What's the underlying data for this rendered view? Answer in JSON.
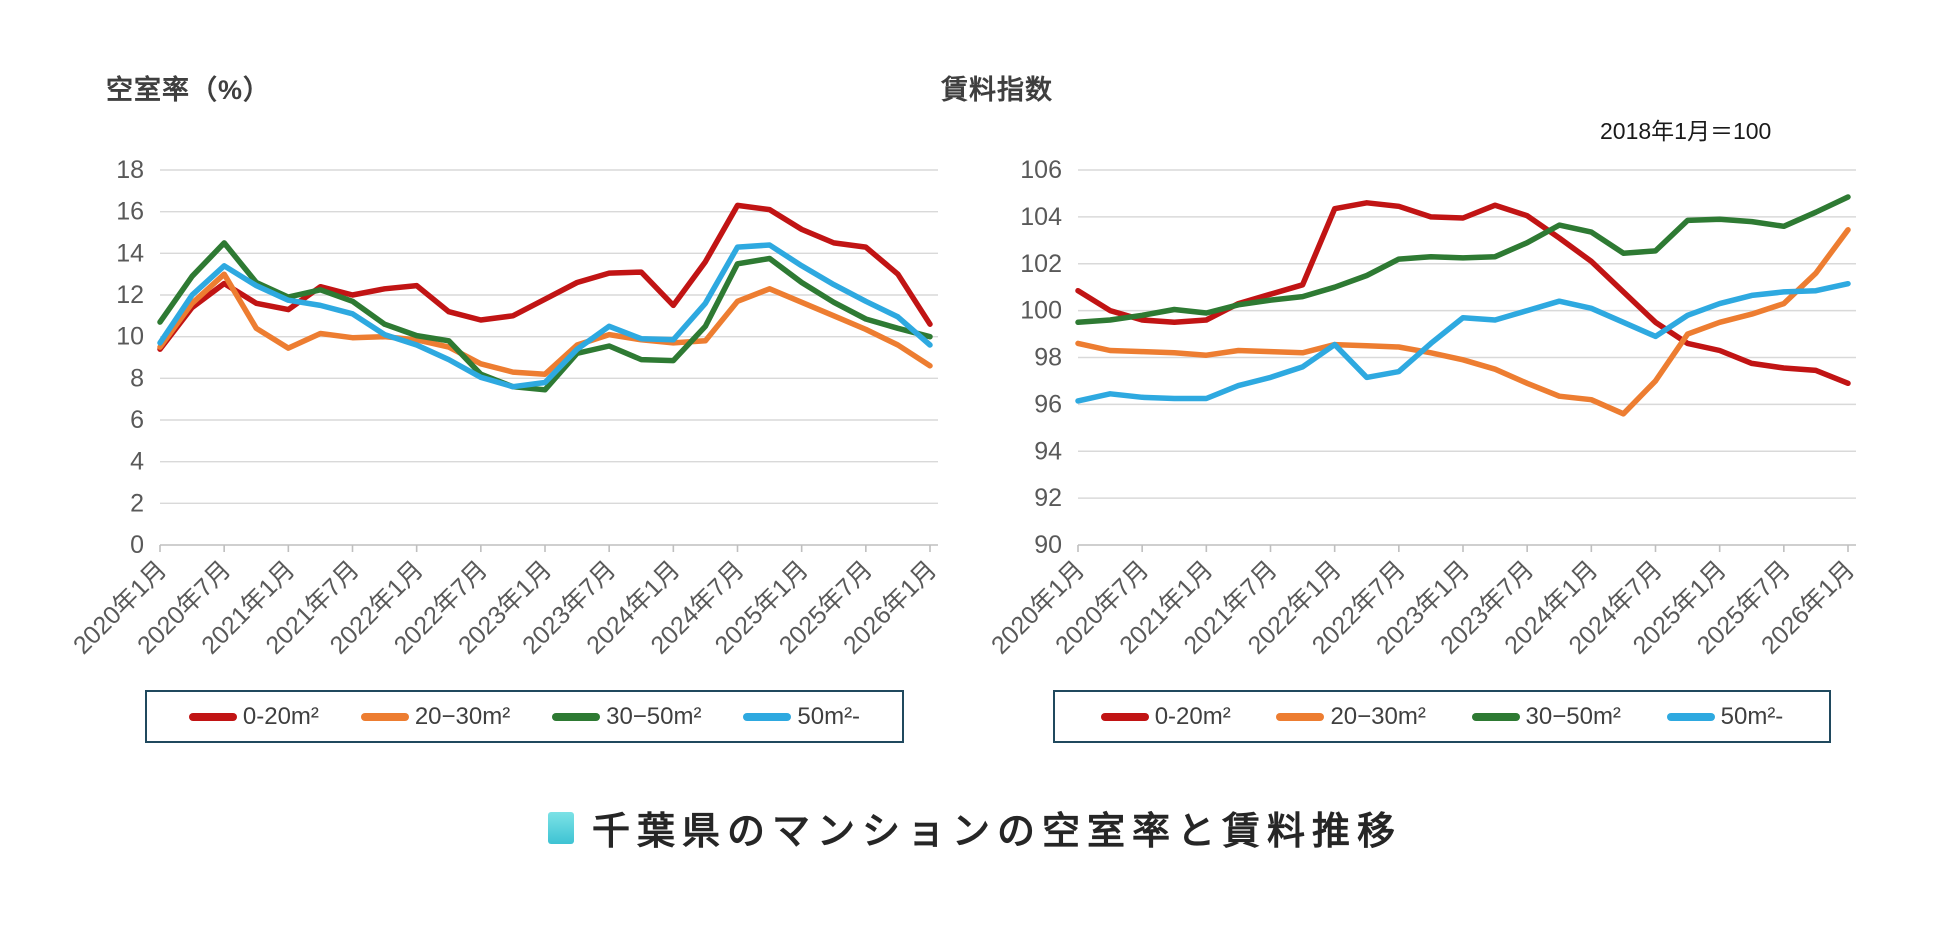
{
  "footer": {
    "title": "千葉県のマンションの空室率と賃料推移",
    "bullet_color": "#4fd0da"
  },
  "legend": {
    "border_color": "#20495e"
  },
  "colors": {
    "red": "#c11414",
    "orange": "#ed7d31",
    "green": "#2e7a33",
    "blue": "#2ea9e0",
    "gridline": "#d9d9d9",
    "axis_line": "#bfbfbf",
    "tick_text": "#595959"
  },
  "chart_data": [
    {
      "type": "line",
      "title": "空室率（%）",
      "ylabel": "空室率（%）",
      "ylim": [
        0,
        18
      ],
      "yticks": [
        0,
        2,
        4,
        6,
        8,
        10,
        12,
        14,
        16,
        18
      ],
      "grid": true,
      "legend_position": "bottom",
      "categories": [
        "2020年1月",
        "2020年7月",
        "2021年1月",
        "2021年7月",
        "2022年1月",
        "2022年7月",
        "2023年1月",
        "2023年7月",
        "2024年1月",
        "2024年7月",
        "2025年1月",
        "2025年7月",
        "2026年1月"
      ],
      "x": [
        "2020-01",
        "2020-04",
        "2020-07",
        "2020-10",
        "2021-01",
        "2021-04",
        "2021-07",
        "2021-10",
        "2022-01",
        "2022-04",
        "2022-07",
        "2022-10",
        "2023-01",
        "2023-04",
        "2023-07",
        "2023-10",
        "2024-01",
        "2024-04",
        "2024-07",
        "2024-10",
        "2025-01",
        "2025-04",
        "2025-07",
        "2025-10",
        "2026-01"
      ],
      "series": [
        {
          "name": "0-20m²",
          "color": "#c11414",
          "values": [
            9.4,
            11.4,
            12.55,
            11.6,
            11.3,
            12.4,
            12.0,
            12.3,
            12.45,
            11.2,
            10.8,
            11.0,
            11.8,
            12.6,
            13.05,
            13.1,
            11.5,
            13.6,
            16.3,
            16.1,
            15.15,
            14.5,
            14.3,
            13.0,
            10.6
          ]
        },
        {
          "name": "20−30m²",
          "color": "#ed7d31",
          "values": [
            9.5,
            11.6,
            13.0,
            10.4,
            9.45,
            10.15,
            9.95,
            10.0,
            9.85,
            9.5,
            8.7,
            8.3,
            8.2,
            9.6,
            10.1,
            9.85,
            9.7,
            9.8,
            11.7,
            12.3,
            11.65,
            11.0,
            10.35,
            9.6,
            8.6
          ]
        },
        {
          "name": "30−50m²",
          "color": "#2e7a33",
          "values": [
            10.7,
            12.9,
            14.5,
            12.6,
            11.9,
            12.25,
            11.7,
            10.6,
            10.05,
            9.8,
            8.2,
            7.6,
            7.45,
            9.2,
            9.55,
            8.9,
            8.85,
            10.5,
            13.5,
            13.75,
            12.6,
            11.65,
            10.85,
            10.4,
            10.0
          ]
        },
        {
          "name": "50m²-",
          "color": "#2ea9e0",
          "values": [
            9.7,
            12.0,
            13.4,
            12.45,
            11.75,
            11.5,
            11.1,
            10.1,
            9.6,
            8.9,
            8.05,
            7.6,
            7.8,
            9.4,
            10.5,
            9.9,
            9.85,
            11.6,
            14.3,
            14.4,
            13.4,
            12.5,
            11.7,
            10.95,
            9.6
          ]
        }
      ]
    },
    {
      "type": "line",
      "title": "賃料指数",
      "annotation": "2018年1月＝100",
      "ylim": [
        90,
        106
      ],
      "yticks": [
        90,
        92,
        94,
        96,
        98,
        100,
        102,
        104,
        106
      ],
      "grid": true,
      "legend_position": "bottom",
      "categories": [
        "2020年1月",
        "2020年7月",
        "2021年1月",
        "2021年7月",
        "2022年1月",
        "2022年7月",
        "2023年1月",
        "2023年7月",
        "2024年1月",
        "2024年7月",
        "2025年1月",
        "2025年7月",
        "2026年1月"
      ],
      "x": [
        "2020-01",
        "2020-04",
        "2020-07",
        "2020-10",
        "2021-01",
        "2021-04",
        "2021-07",
        "2021-10",
        "2022-01",
        "2022-04",
        "2022-07",
        "2022-10",
        "2023-01",
        "2023-04",
        "2023-07",
        "2023-10",
        "2024-01",
        "2024-04",
        "2024-07",
        "2024-10",
        "2025-01",
        "2025-04",
        "2025-07",
        "2025-10",
        "2026-01"
      ],
      "series": [
        {
          "name": "0-20m²",
          "color": "#c11414",
          "values": [
            100.85,
            100.0,
            99.6,
            99.5,
            99.6,
            100.3,
            100.7,
            101.1,
            104.35,
            104.6,
            104.45,
            104.0,
            103.95,
            104.5,
            104.05,
            103.1,
            102.1,
            100.8,
            99.5,
            98.6,
            98.3,
            97.75,
            97.55,
            97.45,
            96.9
          ]
        },
        {
          "name": "20−30m²",
          "color": "#ed7d31",
          "values": [
            98.6,
            98.3,
            98.25,
            98.2,
            98.1,
            98.3,
            98.25,
            98.2,
            98.55,
            98.5,
            98.45,
            98.2,
            97.9,
            97.5,
            96.9,
            96.35,
            96.2,
            95.6,
            97.0,
            99.0,
            99.5,
            99.85,
            100.3,
            101.6,
            103.45
          ]
        },
        {
          "name": "30−50m²",
          "color": "#2e7a33",
          "values": [
            99.5,
            99.6,
            99.8,
            100.05,
            99.9,
            100.25,
            100.45,
            100.6,
            101.0,
            101.5,
            102.2,
            102.3,
            102.25,
            102.3,
            102.9,
            103.65,
            103.35,
            102.45,
            102.55,
            103.85,
            103.9,
            103.8,
            103.6,
            104.2,
            104.85
          ]
        },
        {
          "name": "50m²-",
          "color": "#2ea9e0",
          "values": [
            96.15,
            96.45,
            96.3,
            96.25,
            96.25,
            96.8,
            97.15,
            97.6,
            98.55,
            97.15,
            97.4,
            98.6,
            99.7,
            99.6,
            100.0,
            100.4,
            100.1,
            99.5,
            98.9,
            99.8,
            100.3,
            100.65,
            100.8,
            100.85,
            101.15
          ]
        }
      ]
    }
  ]
}
